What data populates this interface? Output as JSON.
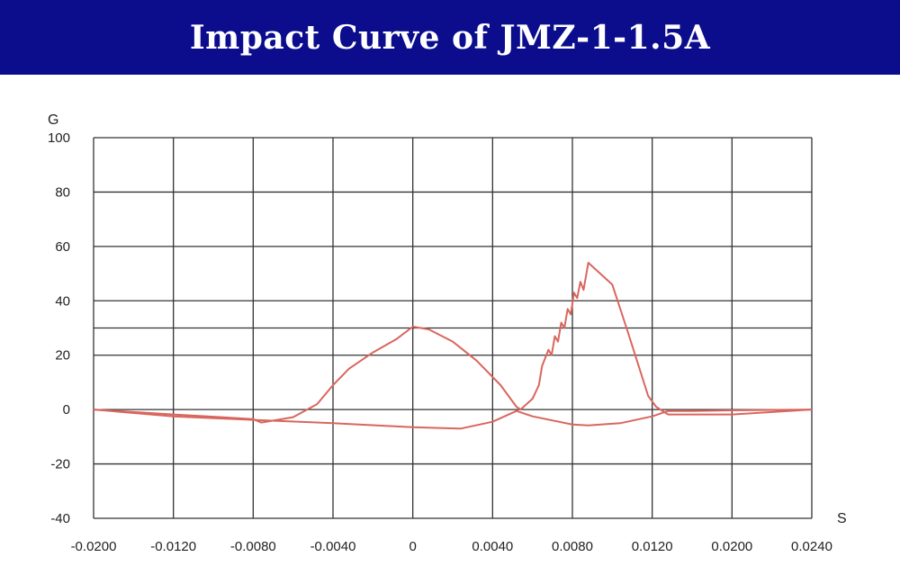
{
  "header": {
    "title": "Impact Curve of  JMZ-1-1.5A",
    "background": "#0c0d8c",
    "title_color": "#ffffff"
  },
  "chart_data": {
    "type": "line",
    "title": "Impact Curve of  JMZ-1-1.5A",
    "xlabel": "S",
    "ylabel": "G",
    "grid": true,
    "ylim": [
      -40,
      100
    ],
    "xlim_labels_note": "non-uniform tick labels as printed",
    "x_ticks": [
      "-0.0200",
      "-0.0120",
      "-0.0080",
      "-0.0040",
      "0",
      "0.0040",
      "0.0080",
      "0.0120",
      "0.0200",
      "0.0240"
    ],
    "y_ticks": [
      "100",
      "80",
      "60",
      "40",
      "20",
      "0",
      "-20",
      "-40"
    ],
    "series_color": "#d9665e",
    "series": [
      {
        "points": [
          [
            0.0,
            0
          ],
          [
            1.0,
            -1.8
          ],
          [
            2.0,
            -3.5
          ],
          [
            2.1,
            -4.8
          ],
          [
            2.5,
            -2.8
          ],
          [
            2.8,
            2
          ],
          [
            3.0,
            9
          ],
          [
            3.2,
            15
          ],
          [
            3.5,
            21
          ],
          [
            3.8,
            26
          ],
          [
            4.0,
            30.5
          ],
          [
            4.2,
            29.5
          ],
          [
            4.5,
            25
          ],
          [
            4.8,
            18
          ],
          [
            5.1,
            9
          ],
          [
            5.3,
            1
          ],
          [
            5.35,
            0
          ],
          [
            5.5,
            4
          ],
          [
            5.58,
            9
          ],
          [
            5.62,
            16
          ],
          [
            5.7,
            22
          ],
          [
            5.74,
            20
          ],
          [
            5.78,
            27
          ],
          [
            5.82,
            25
          ],
          [
            5.86,
            32
          ],
          [
            5.9,
            30
          ],
          [
            5.94,
            37
          ],
          [
            5.98,
            35
          ],
          [
            6.02,
            43
          ],
          [
            6.06,
            41
          ],
          [
            6.1,
            47
          ],
          [
            6.14,
            44
          ],
          [
            6.2,
            54
          ],
          [
            6.5,
            46
          ],
          [
            6.7,
            28
          ],
          [
            6.95,
            5
          ],
          [
            7.05,
            1
          ],
          [
            7.2,
            -1.8
          ],
          [
            8.0,
            -1.8
          ],
          [
            9.0,
            0
          ]
        ]
      },
      {
        "points": [
          [
            0.0,
            0
          ],
          [
            1.0,
            -2.5
          ],
          [
            2.0,
            -3.8
          ],
          [
            3.0,
            -5.0
          ],
          [
            4.0,
            -6.5
          ],
          [
            4.6,
            -7.0
          ],
          [
            5.0,
            -4.5
          ],
          [
            5.3,
            -0.5
          ],
          [
            5.5,
            -2.5
          ],
          [
            6.0,
            -5.5
          ],
          [
            6.2,
            -5.8
          ],
          [
            6.6,
            -5.0
          ],
          [
            7.0,
            -2.5
          ],
          [
            7.2,
            -0.5
          ],
          [
            7.5,
            -0.5
          ],
          [
            8.0,
            -0.3
          ],
          [
            9.0,
            0
          ]
        ]
      }
    ]
  }
}
